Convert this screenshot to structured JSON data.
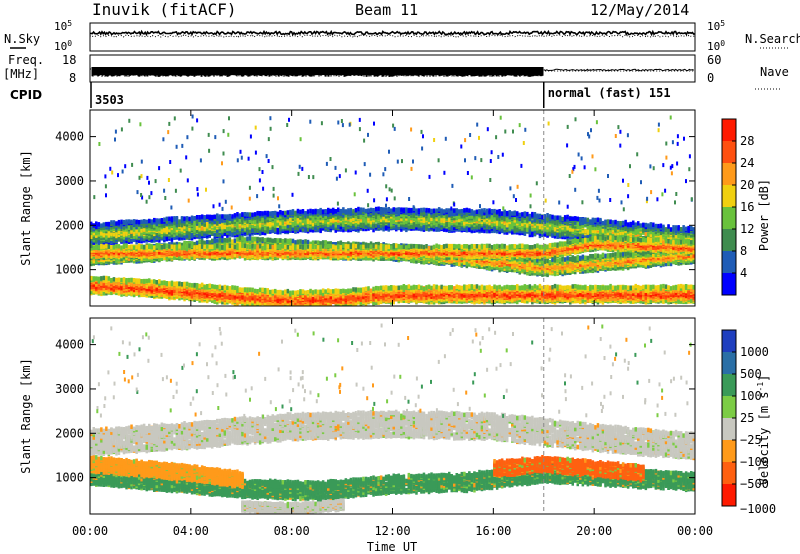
{
  "header": {
    "station": "Inuvik (fitACF)",
    "beam": "Beam 11",
    "date": "12/May/2014"
  },
  "status_panels": {
    "nsky_label": "N.Sky",
    "nsearch_label": "N.Search",
    "nsky_ticks": [
      "10^5",
      "10^0"
    ],
    "freq_label_1": "Freq.",
    "freq_label_2": "[MHz]",
    "freq_ticks": [
      "18",
      "8"
    ],
    "nave_label": "Nave",
    "nave_ticks": [
      "60",
      "0"
    ],
    "cpid_label": "CPID",
    "cpid_segments": [
      {
        "label": "3503",
        "start_hour": 0
      },
      {
        "label": "normal (fast) 151",
        "start_hour": 18
      }
    ]
  },
  "chart_data": [
    {
      "type": "heatmap",
      "name": "power",
      "ylabel": "Slant Range [km]",
      "yticks": [
        1000,
        2000,
        3000,
        4000
      ],
      "ylim": [
        180,
        4600
      ],
      "xlim": [
        0,
        24
      ],
      "colorbar_label": "Power [dB]",
      "colorbar_ticks": [
        4,
        8,
        12,
        16,
        20,
        24,
        28
      ],
      "colorbar_range": [
        0,
        30
      ],
      "colorbar_colors": [
        "#0000ff",
        "#1f5cb6",
        "#3f8c4f",
        "#69c23c",
        "#f0d010",
        "#ff9a1a",
        "#ff5010",
        "#ff1a00"
      ],
      "mode_change_hour": 18,
      "echo_bands": [
        {
          "x": [
            0,
            4,
            8,
            12,
            16,
            20,
            24
          ],
          "range_km": [
            1800,
            1950,
            2100,
            2150,
            2100,
            1900,
            1700
          ],
          "width_km": 350,
          "level": 0.55
        },
        {
          "x": [
            0,
            3,
            6,
            9,
            12,
            15,
            18,
            21,
            24
          ],
          "range_km": [
            1300,
            1400,
            1550,
            1450,
            1400,
            1250,
            1050,
            1200,
            1350
          ],
          "width_km": 250,
          "level": 0.75
        },
        {
          "x": [
            0,
            2,
            4,
            6,
            8,
            10,
            12
          ],
          "range_km": [
            650,
            600,
            500,
            400,
            330,
            360,
            450
          ],
          "width_km": 260,
          "level": 0.9
        },
        {
          "x": [
            18,
            20,
            22,
            24
          ],
          "range_km": [
            1400,
            1600,
            1550,
            1500
          ],
          "width_km": 200,
          "level": 0.85
        }
      ]
    },
    {
      "type": "heatmap",
      "name": "velocity",
      "ylabel": "Slant Range [km]",
      "yticks": [
        1000,
        2000,
        3000,
        4000
      ],
      "ylim": [
        180,
        4600
      ],
      "xlim": [
        0,
        24
      ],
      "xticks": [
        "00:00",
        "04:00",
        "08:00",
        "12:00",
        "16:00",
        "20:00",
        "00:00"
      ],
      "xlabel": "Time UT",
      "colorbar_label": "Velocity [m s",
      "colorbar_label_sup": "-1",
      "colorbar_label_end": "]",
      "colorbar_ticks": [
        "1000",
        "500",
        "100",
        "25",
        "−25",
        "−100",
        "−500",
        "−1000"
      ],
      "colorbar_colors": [
        "#1f3fbf",
        "#2a6fa6",
        "#3a9a58",
        "#7ccc45",
        "#c8c8c0",
        "#ff9a1a",
        "#ff6010",
        "#ff1a00"
      ],
      "mode_change_hour": 18,
      "echo_bands": [
        {
          "x": [
            0,
            4,
            8,
            12,
            16,
            20,
            24
          ],
          "range_km": [
            1800,
            1950,
            2150,
            2200,
            2150,
            1900,
            1700
          ],
          "width_km": 450,
          "color": "#c8c8c0"
        },
        {
          "x": [
            0,
            3,
            6,
            9,
            12,
            15,
            18,
            21,
            24
          ],
          "range_km": [
            1050,
            900,
            750,
            700,
            850,
            900,
            1100,
            1000,
            900
          ],
          "width_km": 300,
          "color": "#3a9a58"
        },
        {
          "x": [
            0,
            2,
            4,
            6
          ],
          "range_km": [
            1300,
            1200,
            1100,
            950
          ],
          "width_km": 250,
          "color": "#ff9a1a"
        },
        {
          "x": [
            16,
            18,
            20,
            22
          ],
          "range_km": [
            1200,
            1300,
            1200,
            1100
          ],
          "width_km": 250,
          "color": "#ff6010"
        },
        {
          "x": [
            6,
            8,
            10
          ],
          "range_km": [
            350,
            300,
            380
          ],
          "width_km": 150,
          "color": "#c8c8c0"
        }
      ]
    }
  ]
}
